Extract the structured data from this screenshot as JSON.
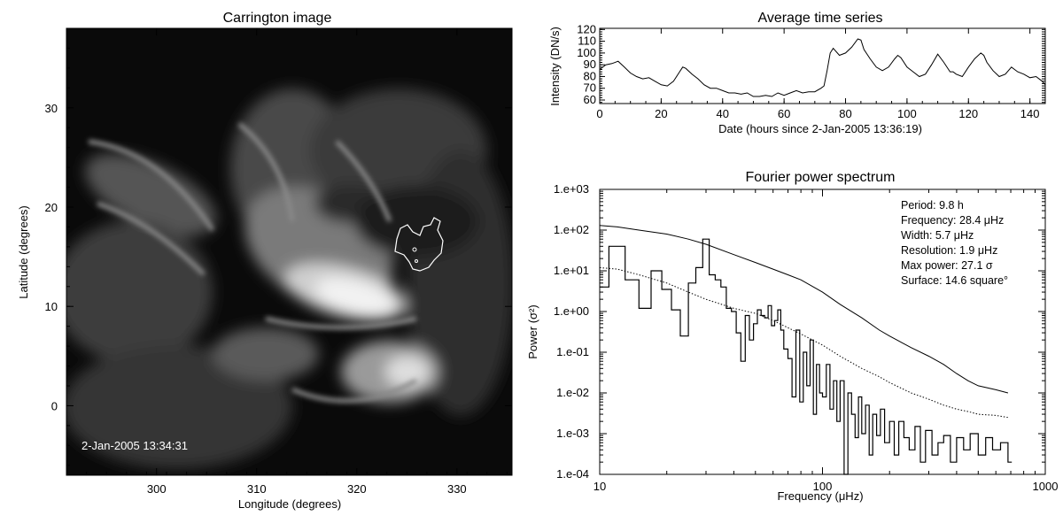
{
  "chart_data": [
    {
      "type": "heatmap",
      "title": "Carrington image",
      "xlabel": "Longitude (degrees)",
      "ylabel": "Latitude (degrees)",
      "xlim": [
        291,
        335.5
      ],
      "ylim": [
        -7,
        38
      ],
      "xticks": [
        300,
        310,
        320,
        330
      ],
      "yticks": [
        0,
        10,
        20,
        30
      ],
      "annotation": "2-Jan-2005 13:34:31",
      "colors": {
        "background": "#0b0b0b",
        "bright": "#ffffff",
        "contour": "#ffffff"
      }
    },
    {
      "type": "line",
      "title": "Average time series",
      "xlabel": "Date (hours since  2-Jan-2005 13:36:19)",
      "ylabel": "Intensity (DN/s)",
      "xlim": [
        0,
        145
      ],
      "ylim": [
        57,
        121
      ],
      "xticks": [
        0,
        20,
        40,
        60,
        80,
        100,
        120,
        140
      ],
      "yticks": [
        60,
        70,
        80,
        90,
        100,
        110,
        120
      ],
      "series": [
        {
          "x": [
            0,
            2,
            4,
            6,
            8,
            10,
            12,
            14,
            16,
            18,
            20,
            22,
            24,
            26,
            27,
            28,
            30,
            32,
            34,
            36,
            38,
            40,
            42,
            44,
            46,
            48,
            50,
            52,
            54,
            56,
            58,
            60,
            62,
            64,
            66,
            68,
            70,
            72,
            73,
            74,
            75,
            76,
            78,
            80,
            82,
            84,
            85,
            86,
            88,
            90,
            92,
            94,
            96,
            97,
            98,
            100,
            102,
            104,
            106,
            108,
            110,
            112,
            114,
            115,
            116,
            118,
            120,
            122,
            124,
            125,
            126,
            128,
            130,
            132,
            134,
            136,
            138,
            140,
            142,
            144,
            145
          ],
          "y": [
            86,
            90,
            91,
            93,
            88,
            83,
            80,
            78,
            79,
            76,
            73,
            72,
            76,
            84,
            88,
            87,
            82,
            78,
            73,
            70,
            70,
            68,
            66,
            66,
            65,
            66,
            63,
            63,
            64,
            63,
            66,
            64,
            66,
            68,
            66,
            67,
            67,
            70,
            72,
            85,
            100,
            104,
            98,
            100,
            105,
            112,
            111,
            103,
            95,
            88,
            85,
            88,
            95,
            98,
            96,
            88,
            84,
            80,
            82,
            90,
            99,
            92,
            84,
            84,
            82,
            80,
            88,
            95,
            100,
            98,
            92,
            85,
            80,
            82,
            88,
            84,
            82,
            79,
            80,
            76,
            73
          ]
        }
      ]
    },
    {
      "type": "line",
      "title": "Fourier power spectrum",
      "xlabel": "Frequency (μHz)",
      "ylabel": "Power (σ²)",
      "xscale": "log",
      "yscale": "log",
      "xlim": [
        10,
        1000
      ],
      "ylim": [
        0.0001,
        1000
      ],
      "xticks": [
        10,
        100,
        1000
      ],
      "yticks": [
        0.0001,
        0.001,
        0.01,
        0.1,
        1,
        10,
        100,
        1000
      ],
      "ytick_labels": [
        "1.e-04",
        "1.e-03",
        "1.e-02",
        "1.e-01",
        "1.e+00",
        "1.e+01",
        "1.e+02",
        "1.e+03"
      ],
      "xtick_labels": [
        "10",
        "100",
        "1000"
      ],
      "series": [
        {
          "style": "steps",
          "x": [
            10,
            11,
            13,
            15,
            17,
            19,
            21,
            23,
            25,
            27,
            29,
            31,
            33,
            35,
            37,
            39,
            41,
            43,
            45,
            47,
            49,
            51,
            53,
            55,
            57,
            59,
            61,
            63,
            65,
            67,
            70,
            73,
            76,
            79,
            82,
            85,
            88,
            91,
            94,
            97,
            100,
            104,
            108,
            112,
            116,
            120,
            125,
            130,
            135,
            140,
            145,
            150,
            156,
            162,
            168,
            175,
            182,
            190,
            200,
            210,
            220,
            232,
            245,
            260,
            275,
            290,
            310,
            330,
            350,
            375,
            400,
            430,
            460,
            500,
            540,
            580,
            630,
            680
          ],
          "y": [
            4,
            40,
            6,
            1.2,
            10,
            3.5,
            1.1,
            0.25,
            5,
            12,
            60,
            8,
            6,
            4,
            1.2,
            1.0,
            0.3,
            0.06,
            0.8,
            0.2,
            0.5,
            1.1,
            0.8,
            0.7,
            1.4,
            0.45,
            0.6,
            1.1,
            0.35,
            0.12,
            0.07,
            0.008,
            0.35,
            0.006,
            0.1,
            0.015,
            0.2,
            0.003,
            0.05,
            0.01,
            0.008,
            0.05,
            0.004,
            0.02,
            0.002,
            0.02,
            0.0001,
            0.01,
            0.003,
            0.0008,
            0.008,
            0.001,
            0.005,
            0.0003,
            0.003,
            0.0009,
            0.004,
            0.0006,
            0.002,
            0.0003,
            0.002,
            0.0008,
            0.0004,
            0.0015,
            0.0002,
            0.0012,
            0.0003,
            0.0006,
            0.0009,
            0.0002,
            0.0008,
            0.0004,
            0.001,
            0.0003,
            0.0008,
            0.0004,
            0.0006,
            0.0002
          ]
        },
        {
          "style": "solid",
          "x": [
            10,
            12,
            15,
            20,
            25,
            30,
            40,
            50,
            60,
            70,
            80,
            100,
            120,
            150,
            180,
            200,
            250,
            300,
            350,
            400,
            450,
            500,
            600,
            680
          ],
          "y": [
            130,
            120,
            100,
            80,
            60,
            45,
            25,
            16,
            11,
            8,
            6,
            3,
            1.5,
            0.7,
            0.35,
            0.25,
            0.13,
            0.08,
            0.05,
            0.03,
            0.02,
            0.015,
            0.012,
            0.01
          ]
        },
        {
          "style": "dotted",
          "x": [
            10,
            12,
            15,
            20,
            25,
            30,
            40,
            50,
            60,
            70,
            80,
            100,
            120,
            150,
            180,
            200,
            250,
            300,
            350,
            400,
            450,
            500,
            600,
            680
          ],
          "y": [
            12,
            11,
            8,
            5,
            3,
            2,
            1.2,
            0.9,
            0.6,
            0.4,
            0.28,
            0.15,
            0.08,
            0.04,
            0.025,
            0.018,
            0.01,
            0.007,
            0.005,
            0.004,
            0.0035,
            0.003,
            0.0028,
            0.0025
          ]
        }
      ],
      "info_lines": [
        "Period: 9.8 h",
        "Frequency: 28.4 μHz",
        "Width: 5.7 μHz",
        "Resolution: 1.9 μHz",
        "Max power: 27.1 σ",
        "Surface: 14.6 square°"
      ]
    }
  ]
}
